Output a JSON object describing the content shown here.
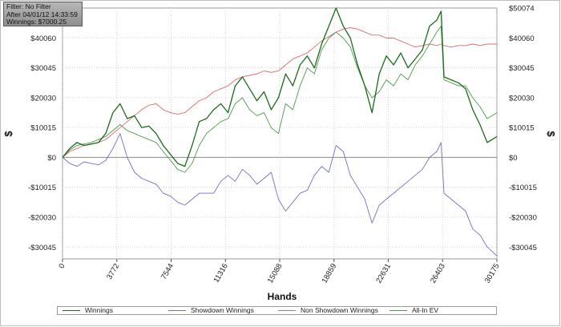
{
  "info": {
    "filter": "Filter: No Filter",
    "after": "After 04/01/12 14:33:59",
    "winnings": "Winnings: $7000.25"
  },
  "legend": [
    {
      "label": "Winnings",
      "color": "#1a6b1a"
    },
    {
      "label": "Showdown Winnings",
      "color": "#6f6fc8"
    },
    {
      "label": "Non Showdown Winnings",
      "color": "#e06a6a"
    },
    {
      "label": "All-In EV",
      "color": "#4f9a4f"
    }
  ],
  "chart_data": {
    "type": "line",
    "xlabel": "Hands",
    "ylabel_left": "$",
    "ylabel_right": "$",
    "xlim": [
      0,
      30175
    ],
    "ylim": [
      -34000,
      50074
    ],
    "x_ticks": [
      0,
      3772,
      7544,
      11316,
      15088,
      18859,
      22631,
      26403,
      30175
    ],
    "y_ticks_left": [
      {
        "value": 40060,
        "label": "$40060"
      },
      {
        "value": 30045,
        "label": "$30045"
      },
      {
        "value": 20030,
        "label": "$20030"
      },
      {
        "value": 10015,
        "label": "$10015"
      },
      {
        "value": 0,
        "label": "$0"
      },
      {
        "value": -10015,
        "label": "-$10015"
      },
      {
        "value": -20030,
        "label": "-$20030"
      },
      {
        "value": -30045,
        "label": "-$30045"
      }
    ],
    "y_ticks_right": [
      {
        "value": 50074,
        "label": "$50074"
      },
      {
        "value": 40060,
        "label": "$40060"
      },
      {
        "value": 30045,
        "label": "$30045"
      },
      {
        "value": 20030,
        "label": "$20030"
      },
      {
        "value": 10015,
        "label": "$10015"
      },
      {
        "value": 0,
        "label": "$0"
      },
      {
        "value": -10015,
        "label": "-$10015"
      },
      {
        "value": -20030,
        "label": "-$20030"
      },
      {
        "value": -30045,
        "label": "-$30045"
      }
    ],
    "grid": true,
    "legend_position": "bottom",
    "series": [
      {
        "name": "Winnings",
        "color": "#1a6b1a",
        "x": [
          0,
          500,
          1000,
          1500,
          2000,
          2500,
          3000,
          3500,
          4000,
          4500,
          5000,
          5500,
          6000,
          6500,
          7000,
          7500,
          8000,
          8500,
          9000,
          9500,
          10000,
          10500,
          11000,
          11500,
          12000,
          12500,
          13000,
          13500,
          14000,
          14500,
          15000,
          15500,
          16000,
          16500,
          17000,
          17500,
          18000,
          18500,
          19000,
          19500,
          20000,
          20500,
          21000,
          21500,
          22000,
          22500,
          23000,
          23500,
          24000,
          24500,
          25000,
          25500,
          26000,
          26300,
          26500,
          27000,
          27500,
          28000,
          28500,
          29000,
          29500,
          30175
        ],
        "y": [
          0,
          3000,
          5000,
          4000,
          4500,
          5000,
          8000,
          15000,
          18000,
          13000,
          14000,
          10000,
          10500,
          8000,
          4000,
          1000,
          -2000,
          -3000,
          4000,
          12000,
          13000,
          16000,
          18000,
          15000,
          24000,
          27000,
          23000,
          19000,
          22000,
          16000,
          20000,
          28000,
          24000,
          31000,
          34000,
          30000,
          38000,
          44000,
          50074,
          44000,
          40000,
          31000,
          24000,
          15000,
          28000,
          34000,
          31000,
          35000,
          30000,
          33000,
          36000,
          44000,
          46000,
          49000,
          27000,
          26000,
          25000,
          23000,
          16000,
          11000,
          5000,
          7000
        ]
      },
      {
        "name": "Showdown Winnings",
        "color": "#6f6fc8",
        "x": [
          0,
          500,
          1000,
          1500,
          2000,
          2500,
          3000,
          3500,
          4000,
          4500,
          5000,
          5500,
          6000,
          6500,
          7000,
          7500,
          8000,
          8500,
          9000,
          9500,
          10000,
          10500,
          11000,
          11500,
          12000,
          12500,
          13000,
          13500,
          14000,
          14500,
          15000,
          15500,
          16000,
          16500,
          17000,
          17500,
          18000,
          18500,
          19000,
          19500,
          20000,
          20500,
          21000,
          21500,
          22000,
          22500,
          23000,
          23500,
          24000,
          24500,
          25000,
          25500,
          26000,
          26300,
          26500,
          27000,
          27500,
          28000,
          28500,
          29000,
          29500,
          30175
        ],
        "y": [
          0,
          -2000,
          -3000,
          -1500,
          -2000,
          -2500,
          -1000,
          3000,
          8000,
          0,
          -5000,
          -7000,
          -8000,
          -9000,
          -12000,
          -13000,
          -15000,
          -16000,
          -14000,
          -12000,
          -12000,
          -12000,
          -8000,
          -6000,
          -8000,
          -4000,
          -6000,
          -9000,
          -7000,
          -5000,
          -14000,
          -18000,
          -15000,
          -12000,
          -11000,
          -6000,
          -3000,
          -5000,
          4000,
          2000,
          -6000,
          -10000,
          -14000,
          -22000,
          -16000,
          -14000,
          -12000,
          -10000,
          -8000,
          -6000,
          -4000,
          0,
          2000,
          5000,
          -12000,
          -14000,
          -16000,
          -18000,
          -24000,
          -26000,
          -30000,
          -33000
        ]
      },
      {
        "name": "Non Showdown Winnings",
        "color": "#e06a6a",
        "x": [
          0,
          500,
          1000,
          1500,
          2000,
          2500,
          3000,
          3500,
          4000,
          4500,
          5000,
          5500,
          6000,
          6500,
          7000,
          7500,
          8000,
          8500,
          9000,
          9500,
          10000,
          10500,
          11000,
          11500,
          12000,
          12500,
          13000,
          13500,
          14000,
          14500,
          15000,
          15500,
          16000,
          16500,
          17000,
          17500,
          18000,
          18500,
          19000,
          19500,
          20000,
          20500,
          21000,
          21500,
          22000,
          22500,
          23000,
          23500,
          24000,
          24500,
          25000,
          25500,
          26000,
          26300,
          26500,
          27000,
          27500,
          28000,
          28500,
          29000,
          29500,
          30175
        ],
        "y": [
          0,
          2000,
          3000,
          4000,
          4500,
          5000,
          6000,
          8000,
          10000,
          12000,
          14000,
          16000,
          17500,
          18000,
          16000,
          15000,
          14500,
          15000,
          17000,
          19000,
          20000,
          22000,
          23000,
          24000,
          26000,
          27000,
          27500,
          28000,
          29000,
          28500,
          29000,
          31000,
          33000,
          34000,
          35000,
          37000,
          39000,
          40500,
          42000,
          43000,
          43500,
          43000,
          42000,
          41000,
          41000,
          40000,
          40000,
          39000,
          38000,
          37000,
          37500,
          38000,
          37500,
          38000,
          37500,
          37000,
          37500,
          37500,
          38000,
          37500,
          38000,
          38000
        ]
      },
      {
        "name": "All-In EV",
        "color": "#4f9a4f",
        "x": [
          0,
          500,
          1000,
          1500,
          2000,
          2500,
          3000,
          3500,
          4000,
          4500,
          5000,
          5500,
          6000,
          6500,
          7000,
          7500,
          8000,
          8500,
          9000,
          9500,
          10000,
          10500,
          11000,
          11500,
          12000,
          12500,
          13000,
          13500,
          14000,
          14500,
          15000,
          15500,
          16000,
          16500,
          17000,
          17500,
          18000,
          18500,
          19000,
          19500,
          20000,
          20500,
          21000,
          21500,
          22000,
          22500,
          23000,
          23500,
          24000,
          24500,
          25000,
          25500,
          26000,
          26300,
          26500,
          27000,
          27500,
          28000,
          28500,
          29000,
          29500,
          30175
        ],
        "y": [
          0,
          2500,
          4000,
          4500,
          5000,
          6000,
          7000,
          9000,
          11000,
          9000,
          8000,
          7000,
          6000,
          5000,
          2000,
          -1000,
          -4000,
          -5000,
          -2000,
          4000,
          8000,
          10000,
          12000,
          13000,
          18000,
          20000,
          16000,
          14000,
          15000,
          10000,
          8000,
          18000,
          16000,
          24000,
          30000,
          28000,
          36000,
          40000,
          42000,
          40000,
          37000,
          30000,
          24000,
          20000,
          22000,
          26000,
          24000,
          28000,
          26000,
          31000,
          34000,
          38000,
          42000,
          44000,
          26000,
          25000,
          24000,
          24000,
          20000,
          17000,
          13000,
          15000
        ]
      }
    ]
  }
}
